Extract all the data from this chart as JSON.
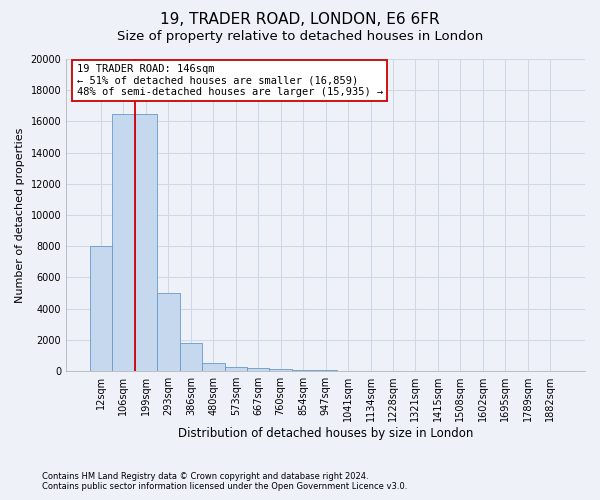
{
  "title1": "19, TRADER ROAD, LONDON, E6 6FR",
  "title2": "Size of property relative to detached houses in London",
  "xlabel": "Distribution of detached houses by size in London",
  "ylabel": "Number of detached properties",
  "categories": [
    "12sqm",
    "106sqm",
    "199sqm",
    "293sqm",
    "386sqm",
    "480sqm",
    "573sqm",
    "667sqm",
    "760sqm",
    "854sqm",
    "947sqm",
    "1041sqm",
    "1134sqm",
    "1228sqm",
    "1321sqm",
    "1415sqm",
    "1508sqm",
    "1602sqm",
    "1695sqm",
    "1789sqm",
    "1882sqm"
  ],
  "values": [
    8000,
    16500,
    16500,
    5000,
    1800,
    500,
    250,
    170,
    110,
    80,
    60,
    0,
    0,
    0,
    0,
    0,
    0,
    0,
    0,
    0,
    0
  ],
  "bar_color": "#c5d8ed",
  "bar_edgecolor": "#6699cc",
  "vline_x": 1.5,
  "vline_color": "#cc0000",
  "annotation_line1": "19 TRADER ROAD: 146sqm",
  "annotation_line2": "← 51% of detached houses are smaller (16,859)",
  "annotation_line3": "48% of semi-detached houses are larger (15,935) →",
  "annotation_box_facecolor": "#ffffff",
  "annotation_box_edgecolor": "#cc0000",
  "ylim": [
    0,
    20000
  ],
  "yticks": [
    0,
    2000,
    4000,
    6000,
    8000,
    10000,
    12000,
    14000,
    16000,
    18000,
    20000
  ],
  "footnote1": "Contains HM Land Registry data © Crown copyright and database right 2024.",
  "footnote2": "Contains public sector information licensed under the Open Government Licence v3.0.",
  "background_color": "#eef2f8",
  "plot_background": "#eef2f8",
  "grid_color": "#d0d8e8",
  "title1_fontsize": 11,
  "title2_fontsize": 9.5,
  "xlabel_fontsize": 8.5,
  "ylabel_fontsize": 8,
  "tick_fontsize": 7,
  "annot_fontsize": 7.5,
  "footnote_fontsize": 6
}
